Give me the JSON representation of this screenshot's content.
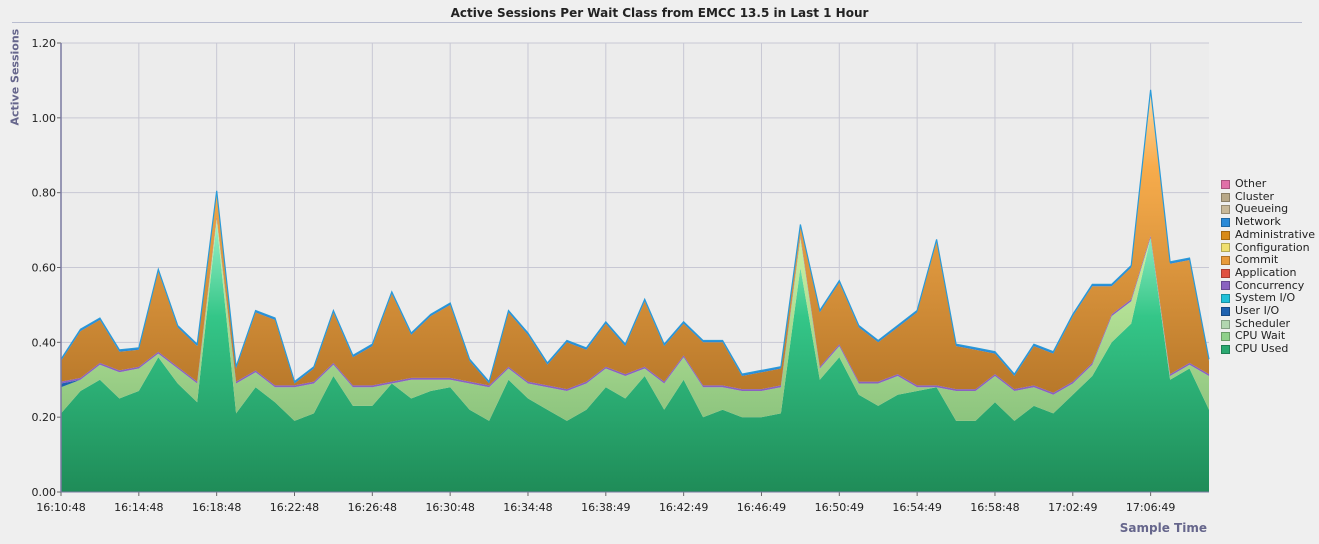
{
  "chart_data": {
    "type": "area",
    "stacked": true,
    "title": "Active Sessions Per Wait Class from EMCC 13.5 in Last 1 Hour",
    "ylabel": "Active Sessions",
    "xlabel": "Sample Time",
    "ylim": [
      0,
      1.2
    ],
    "yticks": [
      "0.00",
      "0.20",
      "0.40",
      "0.60",
      "0.80",
      "1.00",
      "1.20"
    ],
    "xtick_labels": [
      "16:10:48",
      "16:14:48",
      "16:18:48",
      "16:22:48",
      "16:26:48",
      "16:30:48",
      "16:34:48",
      "16:38:49",
      "16:42:49",
      "16:46:49",
      "16:50:49",
      "16:54:49",
      "16:58:48",
      "17:02:49",
      "17:06:49"
    ],
    "grid": true,
    "legend_position": "right",
    "legend": [
      "Other",
      "Cluster",
      "Queueing",
      "Network",
      "Administrative",
      "Configuration",
      "Commit",
      "Application",
      "Concurrency",
      "System I/O",
      "User I/O",
      "Scheduler",
      "CPU Wait",
      "CPU Used"
    ],
    "x_start": "16:10:48",
    "x_end": "17:09:48",
    "sample_count": 60,
    "series": [
      {
        "name": "CPU Used",
        "color": "#2aa870",
        "values": [
          0.21,
          0.27,
          0.3,
          0.25,
          0.27,
          0.36,
          0.29,
          0.24,
          0.72,
          0.21,
          0.28,
          0.24,
          0.19,
          0.21,
          0.31,
          0.23,
          0.23,
          0.29,
          0.25,
          0.27,
          0.28,
          0.22,
          0.19,
          0.3,
          0.25,
          0.22,
          0.19,
          0.22,
          0.28,
          0.25,
          0.31,
          0.22,
          0.3,
          0.2,
          0.22,
          0.2,
          0.2,
          0.21,
          0.6,
          0.3,
          0.36,
          0.26,
          0.23,
          0.26,
          0.27,
          0.28,
          0.19,
          0.19,
          0.24,
          0.19,
          0.23,
          0.21,
          0.26,
          0.31,
          0.4,
          0.45,
          0.68,
          0.3,
          0.33,
          0.22
        ]
      },
      {
        "name": "CPU Wait",
        "color": "#8fd08a",
        "values": [
          0.07,
          0.03,
          0.04,
          0.07,
          0.06,
          0.01,
          0.04,
          0.05,
          0.01,
          0.08,
          0.04,
          0.04,
          0.09,
          0.08,
          0.03,
          0.05,
          0.05,
          0.0,
          0.05,
          0.03,
          0.02,
          0.07,
          0.09,
          0.03,
          0.04,
          0.06,
          0.08,
          0.07,
          0.05,
          0.06,
          0.02,
          0.07,
          0.06,
          0.08,
          0.06,
          0.07,
          0.07,
          0.07,
          0.08,
          0.03,
          0.03,
          0.03,
          0.06,
          0.05,
          0.01,
          0.0,
          0.08,
          0.08,
          0.07,
          0.08,
          0.05,
          0.05,
          0.03,
          0.03,
          0.07,
          0.06,
          0.0,
          0.01,
          0.01,
          0.09
        ]
      },
      {
        "name": "Scheduler",
        "color": "#b2d6b0",
        "values": [
          0,
          0,
          0,
          0,
          0,
          0,
          0,
          0,
          0,
          0,
          0,
          0,
          0,
          0,
          0,
          0,
          0,
          0,
          0,
          0,
          0,
          0,
          0,
          0,
          0,
          0,
          0,
          0,
          0,
          0,
          0,
          0,
          0,
          0,
          0,
          0,
          0,
          0,
          0,
          0,
          0,
          0,
          0,
          0,
          0,
          0,
          0,
          0,
          0,
          0,
          0,
          0,
          0,
          0,
          0,
          0,
          0,
          0,
          0,
          0
        ]
      },
      {
        "name": "User I/O",
        "color": "#1e62b0",
        "values": [
          0.01,
          0,
          0,
          0,
          0,
          0,
          0,
          0,
          0,
          0,
          0,
          0,
          0,
          0,
          0,
          0,
          0,
          0,
          0,
          0,
          0,
          0,
          0,
          0,
          0,
          0,
          0,
          0,
          0,
          0,
          0,
          0,
          0,
          0,
          0,
          0,
          0,
          0,
          0,
          0,
          0,
          0,
          0,
          0,
          0,
          0,
          0,
          0,
          0,
          0,
          0,
          0,
          0,
          0,
          0,
          0,
          0,
          0,
          0,
          0
        ]
      },
      {
        "name": "System I/O",
        "color": "#20c0d8",
        "values": [
          0,
          0,
          0,
          0,
          0,
          0,
          0,
          0,
          0,
          0,
          0,
          0,
          0,
          0,
          0,
          0,
          0,
          0,
          0,
          0,
          0,
          0,
          0,
          0,
          0,
          0,
          0,
          0,
          0,
          0,
          0,
          0,
          0,
          0,
          0,
          0,
          0,
          0,
          0,
          0,
          0,
          0,
          0,
          0,
          0,
          0,
          0,
          0,
          0,
          0,
          0,
          0,
          0,
          0,
          0,
          0,
          0,
          0,
          0,
          0
        ]
      },
      {
        "name": "Concurrency",
        "color": "#8a62c0",
        "values": [
          0.005,
          0.005,
          0.005,
          0.005,
          0.005,
          0.005,
          0.005,
          0.005,
          0.005,
          0.005,
          0.005,
          0.005,
          0.005,
          0.005,
          0.005,
          0.005,
          0.005,
          0.005,
          0.005,
          0.005,
          0.005,
          0.005,
          0.005,
          0.005,
          0.005,
          0.005,
          0.005,
          0.005,
          0.005,
          0.005,
          0.005,
          0.005,
          0.005,
          0.005,
          0.005,
          0.005,
          0.005,
          0.005,
          0.005,
          0.005,
          0.005,
          0.005,
          0.005,
          0.005,
          0.005,
          0.005,
          0.005,
          0.005,
          0.005,
          0.005,
          0.005,
          0.005,
          0.005,
          0.005,
          0.005,
          0.005,
          0.005,
          0.005,
          0.005,
          0.005
        ]
      },
      {
        "name": "Application",
        "color": "#e05040",
        "values": [
          0,
          0,
          0,
          0,
          0,
          0,
          0,
          0,
          0,
          0,
          0,
          0,
          0,
          0,
          0,
          0,
          0,
          0,
          0,
          0,
          0,
          0,
          0,
          0,
          0,
          0,
          0,
          0,
          0,
          0,
          0,
          0,
          0,
          0,
          0,
          0,
          0,
          0,
          0,
          0,
          0,
          0,
          0,
          0,
          0,
          0,
          0,
          0,
          0,
          0,
          0,
          0,
          0,
          0,
          0,
          0,
          0,
          0,
          0,
          0
        ]
      },
      {
        "name": "Commit",
        "color": "#e89a3a",
        "values": [
          0.055,
          0.125,
          0.115,
          0.05,
          0.045,
          0.215,
          0.105,
          0.095,
          0.065,
          0.035,
          0.155,
          0.175,
          0.005,
          0.035,
          0.135,
          0.075,
          0.105,
          0.235,
          0.115,
          0.165,
          0.195,
          0.055,
          0.005,
          0.145,
          0.125,
          0.055,
          0.125,
          0.085,
          0.115,
          0.075,
          0.175,
          0.095,
          0.085,
          0.115,
          0.115,
          0.035,
          0.045,
          0.045,
          0.025,
          0.145,
          0.165,
          0.145,
          0.105,
          0.125,
          0.195,
          0.385,
          0.115,
          0.105,
          0.055,
          0.035,
          0.105,
          0.105,
          0.175,
          0.205,
          0.075,
          0.085,
          0.385,
          0.295,
          0.275,
          0.035
        ]
      },
      {
        "name": "Configuration",
        "color": "#f0e070",
        "values": [
          0,
          0,
          0,
          0,
          0,
          0,
          0,
          0,
          0,
          0,
          0,
          0,
          0,
          0,
          0,
          0,
          0,
          0,
          0,
          0,
          0,
          0,
          0,
          0,
          0,
          0,
          0,
          0,
          0,
          0,
          0,
          0,
          0,
          0,
          0,
          0,
          0,
          0,
          0,
          0,
          0,
          0,
          0,
          0,
          0,
          0,
          0,
          0,
          0,
          0,
          0,
          0,
          0,
          0,
          0,
          0,
          0,
          0,
          0,
          0
        ]
      },
      {
        "name": "Administrative",
        "color": "#d88a18",
        "values": [
          0,
          0,
          0,
          0,
          0,
          0,
          0,
          0,
          0,
          0,
          0,
          0,
          0,
          0,
          0,
          0,
          0,
          0,
          0,
          0,
          0,
          0,
          0,
          0,
          0,
          0,
          0,
          0,
          0,
          0,
          0,
          0,
          0,
          0,
          0,
          0,
          0,
          0,
          0,
          0,
          0,
          0,
          0,
          0,
          0,
          0,
          0,
          0,
          0,
          0,
          0,
          0,
          0,
          0,
          0,
          0,
          0,
          0,
          0,
          0
        ]
      },
      {
        "name": "Network",
        "color": "#2a8ad8",
        "values": [
          0.005,
          0.005,
          0.005,
          0.005,
          0.005,
          0.005,
          0.005,
          0.005,
          0.005,
          0.005,
          0.005,
          0.005,
          0.005,
          0.005,
          0.005,
          0.005,
          0.005,
          0.005,
          0.005,
          0.005,
          0.005,
          0.005,
          0.005,
          0.005,
          0.005,
          0.005,
          0.005,
          0.005,
          0.005,
          0.005,
          0.005,
          0.005,
          0.005,
          0.005,
          0.005,
          0.005,
          0.005,
          0.005,
          0.005,
          0.005,
          0.005,
          0.005,
          0.005,
          0.005,
          0.005,
          0.005,
          0.005,
          0.005,
          0.005,
          0.005,
          0.005,
          0.005,
          0.005,
          0.005,
          0.005,
          0.005,
          0.005,
          0.005,
          0.005,
          0.005
        ]
      },
      {
        "name": "Queueing",
        "color": "#c8b898",
        "values": [
          0,
          0,
          0,
          0,
          0,
          0,
          0,
          0,
          0,
          0,
          0,
          0,
          0,
          0,
          0,
          0,
          0,
          0,
          0,
          0,
          0,
          0,
          0,
          0,
          0,
          0,
          0,
          0,
          0,
          0,
          0,
          0,
          0,
          0,
          0,
          0,
          0,
          0,
          0,
          0,
          0,
          0,
          0,
          0,
          0,
          0,
          0,
          0,
          0,
          0,
          0,
          0,
          0,
          0,
          0,
          0,
          0,
          0,
          0,
          0
        ]
      },
      {
        "name": "Cluster",
        "color": "#b8a888",
        "values": [
          0,
          0,
          0,
          0,
          0,
          0,
          0,
          0,
          0,
          0,
          0,
          0,
          0,
          0,
          0,
          0,
          0,
          0,
          0,
          0,
          0,
          0,
          0,
          0,
          0,
          0,
          0,
          0,
          0,
          0,
          0,
          0,
          0,
          0,
          0,
          0,
          0,
          0,
          0,
          0,
          0,
          0,
          0,
          0,
          0,
          0,
          0,
          0,
          0,
          0,
          0,
          0,
          0,
          0,
          0,
          0,
          0,
          0,
          0,
          0
        ]
      },
      {
        "name": "Other",
        "color": "#e070a8",
        "values": [
          0,
          0,
          0,
          0,
          0,
          0,
          0,
          0,
          0,
          0,
          0,
          0,
          0,
          0,
          0,
          0,
          0,
          0,
          0,
          0,
          0,
          0,
          0,
          0,
          0,
          0,
          0,
          0,
          0,
          0,
          0,
          0,
          0,
          0,
          0,
          0,
          0,
          0,
          0,
          0,
          0,
          0,
          0,
          0,
          0,
          0,
          0,
          0,
          0,
          0,
          0,
          0,
          0,
          0,
          0,
          0,
          0,
          0,
          0,
          0
        ]
      }
    ]
  }
}
